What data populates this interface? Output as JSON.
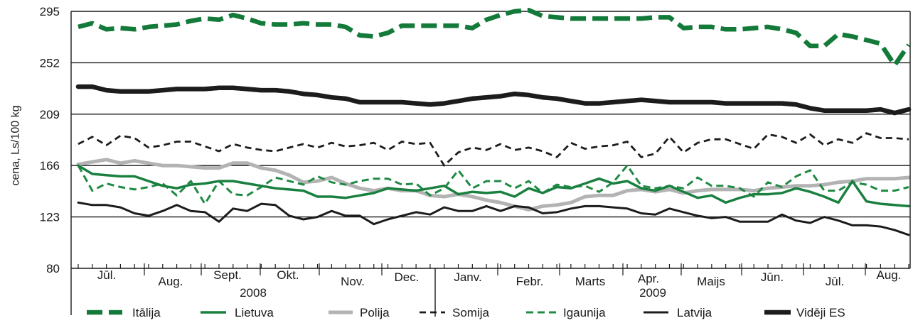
{
  "chart_data": {
    "type": "line",
    "ylabel": "cena, Ls/100 kg",
    "ylim": [
      80,
      295
    ],
    "yticks": [
      295,
      252,
      209,
      166,
      123,
      80
    ],
    "month_labels": [
      "Jūl.",
      "Aug.",
      "Sept.",
      "Okt.",
      "Nov.",
      "Dec.",
      "Janv.",
      "Febr.",
      "Marts",
      "Apr.",
      "Maijs",
      "Jūn.",
      "Jūl.",
      "Aug."
    ],
    "year_labels": [
      "2008",
      "2009"
    ],
    "grid": true,
    "legend": "bottom",
    "series": [
      {
        "name": "Itālija",
        "color": "#137a3a",
        "style": "dashed",
        "values": [
          282,
          285,
          280,
          281,
          280,
          282,
          283,
          284,
          287,
          289,
          288,
          292,
          289,
          285,
          284,
          284,
          285,
          284,
          284,
          282,
          275,
          274,
          277,
          283,
          283,
          283,
          283,
          283,
          281,
          288,
          292,
          295,
          296,
          291,
          290,
          289,
          289,
          289,
          289,
          289,
          289,
          290,
          290,
          281,
          282,
          282,
          280,
          280,
          281,
          282,
          280,
          277,
          266,
          266,
          276,
          274,
          271,
          268,
          250,
          267
        ]
      },
      {
        "name": "Lietuva",
        "color": "#1a8040",
        "style": "solid",
        "values": [
          166,
          159,
          158,
          157,
          157,
          153,
          149,
          147,
          150,
          151,
          153,
          153,
          151,
          149,
          147,
          146,
          145,
          140,
          140,
          139,
          141,
          143,
          147,
          146,
          145,
          147,
          149,
          142,
          144,
          143,
          144,
          140,
          147,
          143,
          148,
          147,
          151,
          155,
          151,
          153,
          147,
          145,
          149,
          144,
          139,
          141,
          135,
          139,
          142,
          142,
          143,
          147,
          144,
          140,
          135,
          153,
          136,
          134,
          133,
          132
        ]
      },
      {
        "name": "Polija",
        "color": "#b3b3b3",
        "style": "solid",
        "values": [
          167,
          169,
          171,
          168,
          170,
          168,
          166,
          166,
          165,
          164,
          164,
          168,
          168,
          164,
          162,
          158,
          152,
          153,
          156,
          151,
          147,
          145,
          147,
          145,
          145,
          141,
          140,
          142,
          140,
          137,
          135,
          132,
          129,
          132,
          133,
          135,
          140,
          141,
          141,
          145,
          146,
          144,
          146,
          143,
          145,
          146,
          146,
          146,
          145,
          147,
          148,
          149,
          149,
          150,
          152,
          153,
          155,
          155,
          155,
          156
        ]
      },
      {
        "name": "Somija",
        "color": "#1c1c1c",
        "style": "dashed",
        "values": [
          184,
          190,
          183,
          191,
          189,
          181,
          183,
          186,
          186,
          182,
          178,
          184,
          181,
          179,
          178,
          181,
          184,
          181,
          185,
          182,
          183,
          185,
          179,
          186,
          184,
          185,
          166,
          177,
          181,
          179,
          184,
          179,
          181,
          178,
          173,
          185,
          180,
          182,
          183,
          186,
          173,
          176,
          190,
          177,
          185,
          188,
          188,
          184,
          180,
          192,
          190,
          185,
          192,
          183,
          188,
          185,
          193,
          189,
          189,
          188
        ]
      },
      {
        "name": "Igaunija",
        "color": "#1f8a44",
        "style": "dashed",
        "values": [
          166,
          145,
          151,
          148,
          146,
          148,
          151,
          141,
          153,
          134,
          153,
          142,
          141,
          148,
          156,
          153,
          150,
          157,
          152,
          150,
          153,
          155,
          155,
          150,
          151,
          141,
          147,
          162,
          147,
          153,
          153,
          147,
          153,
          143,
          150,
          148,
          149,
          144,
          152,
          166,
          149,
          147,
          149,
          147,
          156,
          149,
          149,
          147,
          140,
          152,
          148,
          157,
          162,
          145,
          145,
          152,
          150,
          145,
          145,
          148
        ]
      },
      {
        "name": "Latvija",
        "color": "#1c1c1c",
        "style": "solid",
        "values": [
          135,
          133,
          133,
          131,
          126,
          124,
          128,
          133,
          128,
          127,
          119,
          130,
          128,
          134,
          133,
          124,
          121,
          123,
          128,
          124,
          124,
          117,
          121,
          124,
          127,
          125,
          131,
          128,
          128,
          132,
          128,
          132,
          131,
          126,
          127,
          130,
          132,
          132,
          131,
          130,
          126,
          125,
          130,
          127,
          124,
          122,
          123,
          119,
          119,
          119,
          125,
          120,
          118,
          123,
          120,
          116,
          116,
          115,
          112,
          108
        ]
      },
      {
        "name": "Vidēji ES",
        "color": "#1c1c1c",
        "style": "solid",
        "values": [
          232,
          232,
          229,
          228,
          228,
          228,
          229,
          230,
          230,
          230,
          231,
          231,
          230,
          229,
          229,
          228,
          226,
          225,
          223,
          222,
          219,
          219,
          219,
          219,
          218,
          217,
          218,
          220,
          222,
          223,
          224,
          226,
          225,
          223,
          222,
          220,
          218,
          218,
          219,
          220,
          221,
          220,
          219,
          219,
          219,
          219,
          218,
          218,
          218,
          218,
          218,
          217,
          214,
          212,
          212,
          212,
          212,
          213,
          210,
          213
        ]
      }
    ]
  }
}
